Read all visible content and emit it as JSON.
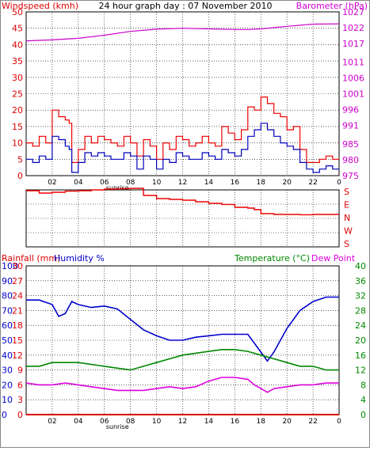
{
  "chart_data": [
    {
      "type": "line",
      "title": "24 hour graph day : 07 November 2010",
      "ylabel_left": "Windspeed (kmh)",
      "ylabel_right": "Barometer (hPa)",
      "xlim": [
        0,
        24
      ],
      "x_ticks": [
        "02",
        "04",
        "06",
        "08",
        "10",
        "12",
        "14",
        "16",
        "18",
        "20",
        "22",
        "0"
      ],
      "x_tick_hours": [
        2,
        4,
        6,
        8,
        10,
        12,
        14,
        16,
        18,
        20,
        22,
        24
      ],
      "sunrise_label": "sunrise",
      "sunrise_hour": 7,
      "ylim_left": [
        0,
        50
      ],
      "yticks_left": [
        0,
        5,
        10,
        15,
        20,
        25,
        30,
        35,
        40,
        45,
        50
      ],
      "ylim_right": [
        975,
        1027
      ],
      "yticks_right": [
        975,
        980,
        985,
        991,
        996,
        1001,
        1006,
        1011,
        1017,
        1022,
        1027
      ],
      "series": [
        {
          "name": "Barometer",
          "axis": "right",
          "color": "#cc00cc",
          "step": false,
          "x": [
            0,
            2,
            4,
            6,
            8,
            10,
            12,
            14,
            16,
            17,
            18,
            20,
            22,
            24
          ],
          "y": [
            1017.8,
            1018.1,
            1018.6,
            1019.6,
            1020.8,
            1021.5,
            1021.8,
            1021.6,
            1021.4,
            1021.4,
            1021.6,
            1022.4,
            1023.1,
            1023.2
          ]
        },
        {
          "name": "Wind gust",
          "axis": "left",
          "color": "#ee0000",
          "step": true,
          "x": [
            0,
            0.5,
            1,
            1.5,
            2,
            2.5,
            3,
            3.3,
            3.5,
            4,
            4.5,
            5,
            5.5,
            6,
            6.5,
            7,
            7.5,
            8,
            8.5,
            9,
            9.5,
            10,
            10.5,
            11,
            11.5,
            12,
            12.5,
            13,
            13.5,
            14,
            14.5,
            15,
            15.5,
            16,
            16.5,
            17,
            17.5,
            18,
            18.5,
            19,
            19.5,
            20,
            20.5,
            21,
            21.5,
            22,
            22.5,
            23,
            23.5
          ],
          "y": [
            10,
            9,
            12,
            10,
            20,
            18,
            17,
            16,
            4,
            8,
            12,
            10,
            12,
            11,
            10,
            9,
            12,
            10,
            6,
            11,
            9,
            5,
            10,
            8,
            12,
            11,
            9,
            10,
            12,
            10,
            9,
            15,
            13,
            11,
            14,
            21,
            20,
            24,
            22,
            19,
            18,
            14,
            15,
            8,
            4,
            4,
            5,
            6,
            5
          ]
        },
        {
          "name": "Wind speed",
          "axis": "left",
          "color": "#0000bb",
          "step": true,
          "x": [
            0,
            0.5,
            1,
            1.5,
            2,
            2.5,
            3,
            3.3,
            3.5,
            4,
            4.5,
            5,
            5.5,
            6,
            6.5,
            7,
            7.5,
            8,
            8.5,
            9,
            9.5,
            10,
            10.5,
            11,
            11.5,
            12,
            12.5,
            13,
            13.5,
            14,
            14.5,
            15,
            15.5,
            16,
            16.5,
            17,
            17.5,
            18,
            18.5,
            19,
            19.5,
            20,
            20.5,
            21,
            21.5,
            22,
            22.5,
            23,
            23.5
          ],
          "y": [
            5,
            4,
            6,
            5,
            12,
            11,
            9,
            8,
            1,
            4,
            7,
            6,
            7,
            6,
            5,
            5,
            7,
            6,
            2,
            6,
            5,
            2,
            5,
            4,
            7,
            6,
            5,
            5,
            7,
            6,
            5,
            8,
            7,
            6,
            8,
            12,
            14,
            16,
            14,
            12,
            10,
            9,
            8,
            4,
            2,
            1,
            2,
            3,
            2
          ]
        }
      ]
    },
    {
      "type": "line",
      "ylabel_right": "S\nE\nN\nW\nS",
      "xlim": [
        0,
        24
      ],
      "ylim": [
        0,
        360
      ],
      "series": [
        {
          "name": "Wind direction",
          "color": "#ee0000",
          "step": true,
          "x": [
            0,
            1,
            2,
            3,
            4,
            5,
            6,
            7,
            8,
            9,
            10,
            11,
            12,
            13,
            14,
            15,
            16,
            17,
            17.5,
            18,
            19,
            20,
            21,
            22,
            23,
            24
          ],
          "y": [
            355,
            340,
            345,
            352,
            355,
            360,
            365,
            368,
            370,
            325,
            305,
            300,
            295,
            285,
            275,
            268,
            250,
            245,
            235,
            210,
            205,
            205,
            203,
            205,
            205,
            205
          ]
        }
      ]
    },
    {
      "type": "line",
      "ylabel_left": "Rainfall (mm)",
      "ylabel_left2": "Humidity %",
      "ylabel_right": "Temperature (°C)",
      "ylabel_right2": "Dew Point",
      "xlim": [
        0,
        24
      ],
      "x_ticks": [
        "02",
        "04",
        "06",
        "08",
        "10",
        "12",
        "14",
        "16",
        "18",
        "20",
        "22",
        "0"
      ],
      "x_tick_hours": [
        2,
        4,
        6,
        8,
        10,
        12,
        14,
        16,
        18,
        20,
        22,
        24
      ],
      "sunrise_label": "sunrise",
      "sunrise_hour": 7,
      "humidity_ticks": [
        0,
        10,
        20,
        30,
        40,
        50,
        60,
        70,
        80,
        90,
        100
      ],
      "rain_ticks": [
        0,
        3,
        6,
        9,
        12,
        15,
        18,
        21,
        24,
        27,
        30
      ],
      "temp_ticks": [
        0,
        4,
        8,
        12,
        16,
        20,
        24,
        28,
        32,
        36,
        40
      ],
      "ylim_humidity": [
        0,
        100
      ],
      "ylim_temp": [
        0,
        40
      ],
      "series": [
        {
          "name": "Humidity",
          "axis": "humidity",
          "color": "#0000cc",
          "x": [
            0,
            1,
            2,
            2.5,
            3,
            3.5,
            4,
            5,
            6,
            7,
            8,
            9,
            10,
            11,
            12,
            13,
            14,
            15,
            16,
            17,
            18,
            18.5,
            19,
            20,
            21,
            22,
            23,
            24
          ],
          "y": [
            77,
            77,
            74,
            66,
            68,
            76,
            74,
            72,
            73,
            71,
            64,
            57,
            53,
            50,
            50,
            52,
            53,
            54,
            54,
            54,
            42,
            36,
            42,
            58,
            70,
            76,
            79,
            79
          ]
        },
        {
          "name": "Temperature",
          "axis": "temp",
          "color": "#008800",
          "x": [
            0,
            1,
            2,
            3,
            4,
            5,
            6,
            7,
            8,
            9,
            10,
            11,
            12,
            13,
            14,
            15,
            16,
            17,
            18,
            19,
            20,
            21,
            22,
            23,
            24
          ],
          "y": [
            13,
            13,
            14,
            14,
            14,
            13.5,
            13,
            12.5,
            12,
            13,
            14,
            15,
            16,
            16.5,
            17,
            17.5,
            17.5,
            17,
            16,
            15,
            14,
            13,
            13,
            12,
            12
          ]
        },
        {
          "name": "Dew Point",
          "axis": "temp",
          "color": "#dd00dd",
          "x": [
            0,
            1,
            2,
            3,
            4,
            5,
            6,
            7,
            8,
            9,
            10,
            11,
            12,
            13,
            14,
            15,
            16,
            17,
            17.5,
            18,
            18.5,
            19,
            20,
            21,
            22,
            23,
            24
          ],
          "y": [
            8.5,
            8,
            8,
            8.5,
            8,
            7.5,
            7,
            6.5,
            6.5,
            6.5,
            7,
            7.5,
            7,
            7.5,
            9,
            10,
            10,
            9.5,
            8,
            7,
            6,
            7,
            7.5,
            8,
            8,
            8.5,
            8.5
          ]
        },
        {
          "name": "Rainfall",
          "axis": "rain",
          "color": "#dd0000",
          "x": [
            0,
            24
          ],
          "y": [
            0,
            0
          ]
        }
      ]
    }
  ]
}
